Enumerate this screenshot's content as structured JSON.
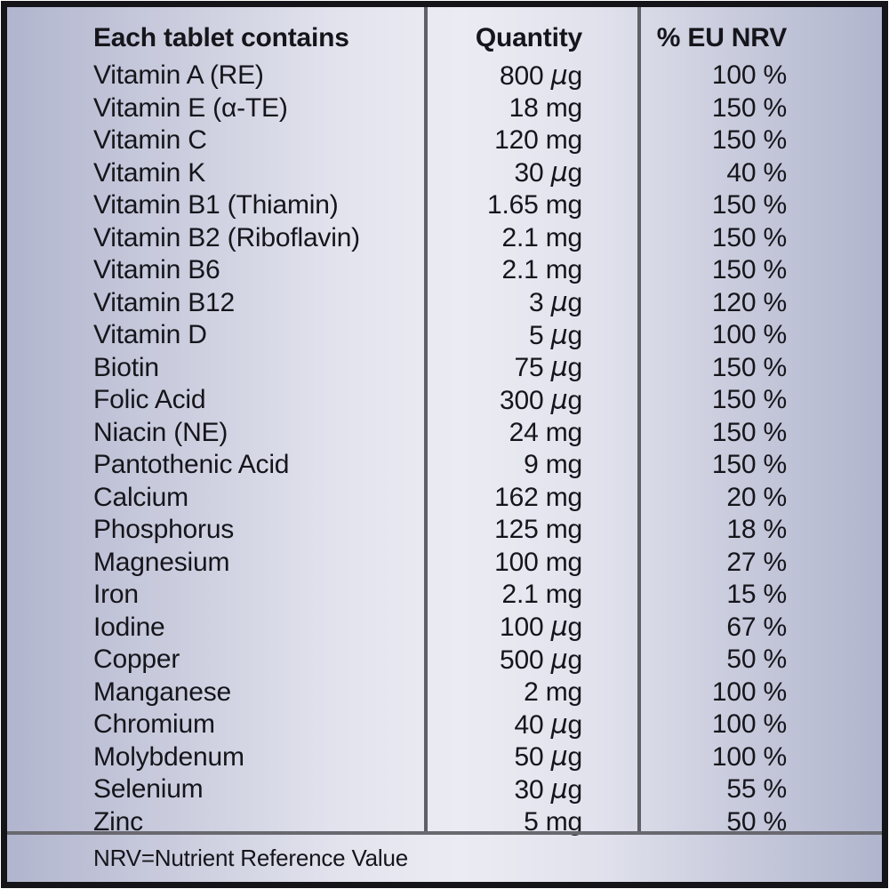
{
  "label": {
    "headers": {
      "name": "Each tablet contains",
      "quantity": "Quantity",
      "nrv": "% EU NRV"
    },
    "rows": [
      {
        "name": "Vitamin A (RE)",
        "quantity": "800 µg",
        "nrv": "100 %"
      },
      {
        "name": "Vitamin E (α-TE)",
        "quantity": "18 mg",
        "nrv": "150 %"
      },
      {
        "name": "Vitamin C",
        "quantity": "120 mg",
        "nrv": "150 %"
      },
      {
        "name": "Vitamin K",
        "quantity": "30 µg",
        "nrv": "40 %"
      },
      {
        "name": "Vitamin B1 (Thiamin)",
        "quantity": "1.65 mg",
        "nrv": "150 %"
      },
      {
        "name": "Vitamin B2 (Riboflavin)",
        "quantity": "2.1 mg",
        "nrv": "150 %"
      },
      {
        "name": "Vitamin B6",
        "quantity": "2.1 mg",
        "nrv": "150 %"
      },
      {
        "name": "Vitamin B12",
        "quantity": "3 µg",
        "nrv": "120 %"
      },
      {
        "name": "Vitamin D",
        "quantity": "5 µg",
        "nrv": "100 %"
      },
      {
        "name": "Biotin",
        "quantity": "75 µg",
        "nrv": "150 %"
      },
      {
        "name": "Folic Acid",
        "quantity": "300 µg",
        "nrv": "150 %"
      },
      {
        "name": "Niacin (NE)",
        "quantity": "24 mg",
        "nrv": "150 %"
      },
      {
        "name": "Pantothenic Acid",
        "quantity": "9 mg",
        "nrv": "150 %"
      },
      {
        "name": "Calcium",
        "quantity": "162 mg",
        "nrv": "20 %"
      },
      {
        "name": "Phosphorus",
        "quantity": "125 mg",
        "nrv": "18 %"
      },
      {
        "name": "Magnesium",
        "quantity": "100 mg",
        "nrv": "27 %"
      },
      {
        "name": "Iron",
        "quantity": "2.1 mg",
        "nrv": "15 %"
      },
      {
        "name": "Iodine",
        "quantity": "100 µg",
        "nrv": "67 %"
      },
      {
        "name": "Copper",
        "quantity": "500 µg",
        "nrv": "50 %"
      },
      {
        "name": "Manganese",
        "quantity": "2 mg",
        "nrv": "100 %"
      },
      {
        "name": "Chromium",
        "quantity": "40 µg",
        "nrv": "100 %"
      },
      {
        "name": "Molybdenum",
        "quantity": "50 µg",
        "nrv": "100 %"
      },
      {
        "name": "Selenium",
        "quantity": "30 µg",
        "nrv": "55 %"
      },
      {
        "name": "Zinc",
        "quantity": "5 mg",
        "nrv": "50 %"
      }
    ],
    "footnote": "NRV=Nutrient Reference Value",
    "colors": {
      "frame_border": "#141419",
      "background_edge": "#b1b5cd",
      "background_center": "#ebecf3",
      "divider": "#5f5f67",
      "text": "#15151b"
    }
  }
}
